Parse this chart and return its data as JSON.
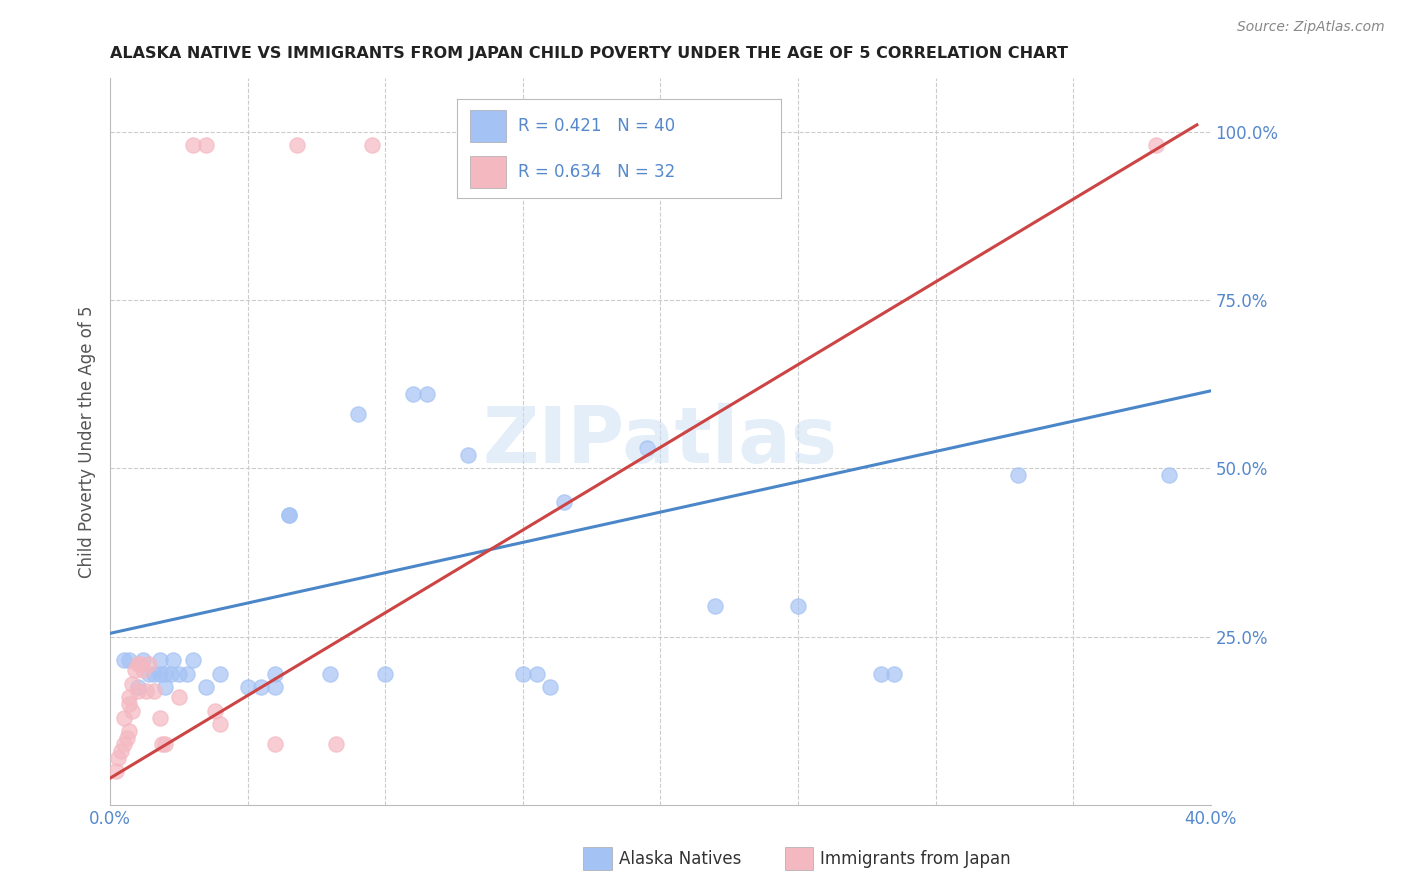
{
  "title": "ALASKA NATIVE VS IMMIGRANTS FROM JAPAN CHILD POVERTY UNDER THE AGE OF 5 CORRELATION CHART",
  "source": "Source: ZipAtlas.com",
  "ylabel": "Child Poverty Under the Age of 5",
  "ytick_labels": [
    "100.0%",
    "75.0%",
    "50.0%",
    "25.0%"
  ],
  "legend_blue_text": "R = 0.421   N = 40",
  "legend_pink_text": "R = 0.634   N = 32",
  "legend_label_blue": "Alaska Natives",
  "legend_label_pink": "Immigrants from Japan",
  "watermark": "ZIPatlas",
  "blue_color": "#a4c2f4",
  "pink_color": "#f4b8c1",
  "blue_line_color": "#4a86c8",
  "pink_line_color": "#cc4444",
  "title_color": "#222222",
  "axis_label_color": "#5588cc",
  "blue_scatter": [
    [
      0.005,
      0.215
    ],
    [
      0.007,
      0.215
    ],
    [
      0.01,
      0.175
    ],
    [
      0.012,
      0.215
    ],
    [
      0.014,
      0.195
    ],
    [
      0.016,
      0.195
    ],
    [
      0.018,
      0.195
    ],
    [
      0.018,
      0.215
    ],
    [
      0.02,
      0.175
    ],
    [
      0.02,
      0.195
    ],
    [
      0.022,
      0.195
    ],
    [
      0.023,
      0.215
    ],
    [
      0.025,
      0.195
    ],
    [
      0.028,
      0.195
    ],
    [
      0.03,
      0.215
    ],
    [
      0.035,
      0.175
    ],
    [
      0.04,
      0.195
    ],
    [
      0.05,
      0.175
    ],
    [
      0.055,
      0.175
    ],
    [
      0.06,
      0.195
    ],
    [
      0.06,
      0.175
    ],
    [
      0.065,
      0.43
    ],
    [
      0.065,
      0.43
    ],
    [
      0.08,
      0.195
    ],
    [
      0.09,
      0.58
    ],
    [
      0.1,
      0.195
    ],
    [
      0.11,
      0.61
    ],
    [
      0.115,
      0.61
    ],
    [
      0.13,
      0.52
    ],
    [
      0.15,
      0.195
    ],
    [
      0.155,
      0.195
    ],
    [
      0.16,
      0.175
    ],
    [
      0.165,
      0.45
    ],
    [
      0.195,
      0.53
    ],
    [
      0.22,
      0.295
    ],
    [
      0.25,
      0.295
    ],
    [
      0.28,
      0.195
    ],
    [
      0.285,
      0.195
    ],
    [
      0.33,
      0.49
    ],
    [
      0.385,
      0.49
    ]
  ],
  "pink_scatter": [
    [
      0.002,
      0.05
    ],
    [
      0.003,
      0.07
    ],
    [
      0.004,
      0.08
    ],
    [
      0.005,
      0.09
    ],
    [
      0.005,
      0.13
    ],
    [
      0.006,
      0.1
    ],
    [
      0.007,
      0.11
    ],
    [
      0.007,
      0.15
    ],
    [
      0.007,
      0.16
    ],
    [
      0.008,
      0.14
    ],
    [
      0.008,
      0.18
    ],
    [
      0.009,
      0.2
    ],
    [
      0.01,
      0.17
    ],
    [
      0.01,
      0.21
    ],
    [
      0.011,
      0.21
    ],
    [
      0.012,
      0.2
    ],
    [
      0.013,
      0.17
    ],
    [
      0.014,
      0.21
    ],
    [
      0.016,
      0.17
    ],
    [
      0.018,
      0.13
    ],
    [
      0.019,
      0.09
    ],
    [
      0.02,
      0.09
    ],
    [
      0.025,
      0.16
    ],
    [
      0.03,
      0.98
    ],
    [
      0.035,
      0.98
    ],
    [
      0.038,
      0.14
    ],
    [
      0.04,
      0.12
    ],
    [
      0.06,
      0.09
    ],
    [
      0.068,
      0.98
    ],
    [
      0.082,
      0.09
    ],
    [
      0.095,
      0.98
    ],
    [
      0.38,
      0.98
    ]
  ],
  "blue_line_x": [
    0.0,
    0.4
  ],
  "blue_line_y": [
    0.255,
    0.615
  ],
  "pink_line_x": [
    0.0,
    0.395
  ],
  "pink_line_y": [
    0.04,
    1.01
  ],
  "xlim": [
    0.0,
    0.4
  ],
  "ylim": [
    0.0,
    1.08
  ]
}
